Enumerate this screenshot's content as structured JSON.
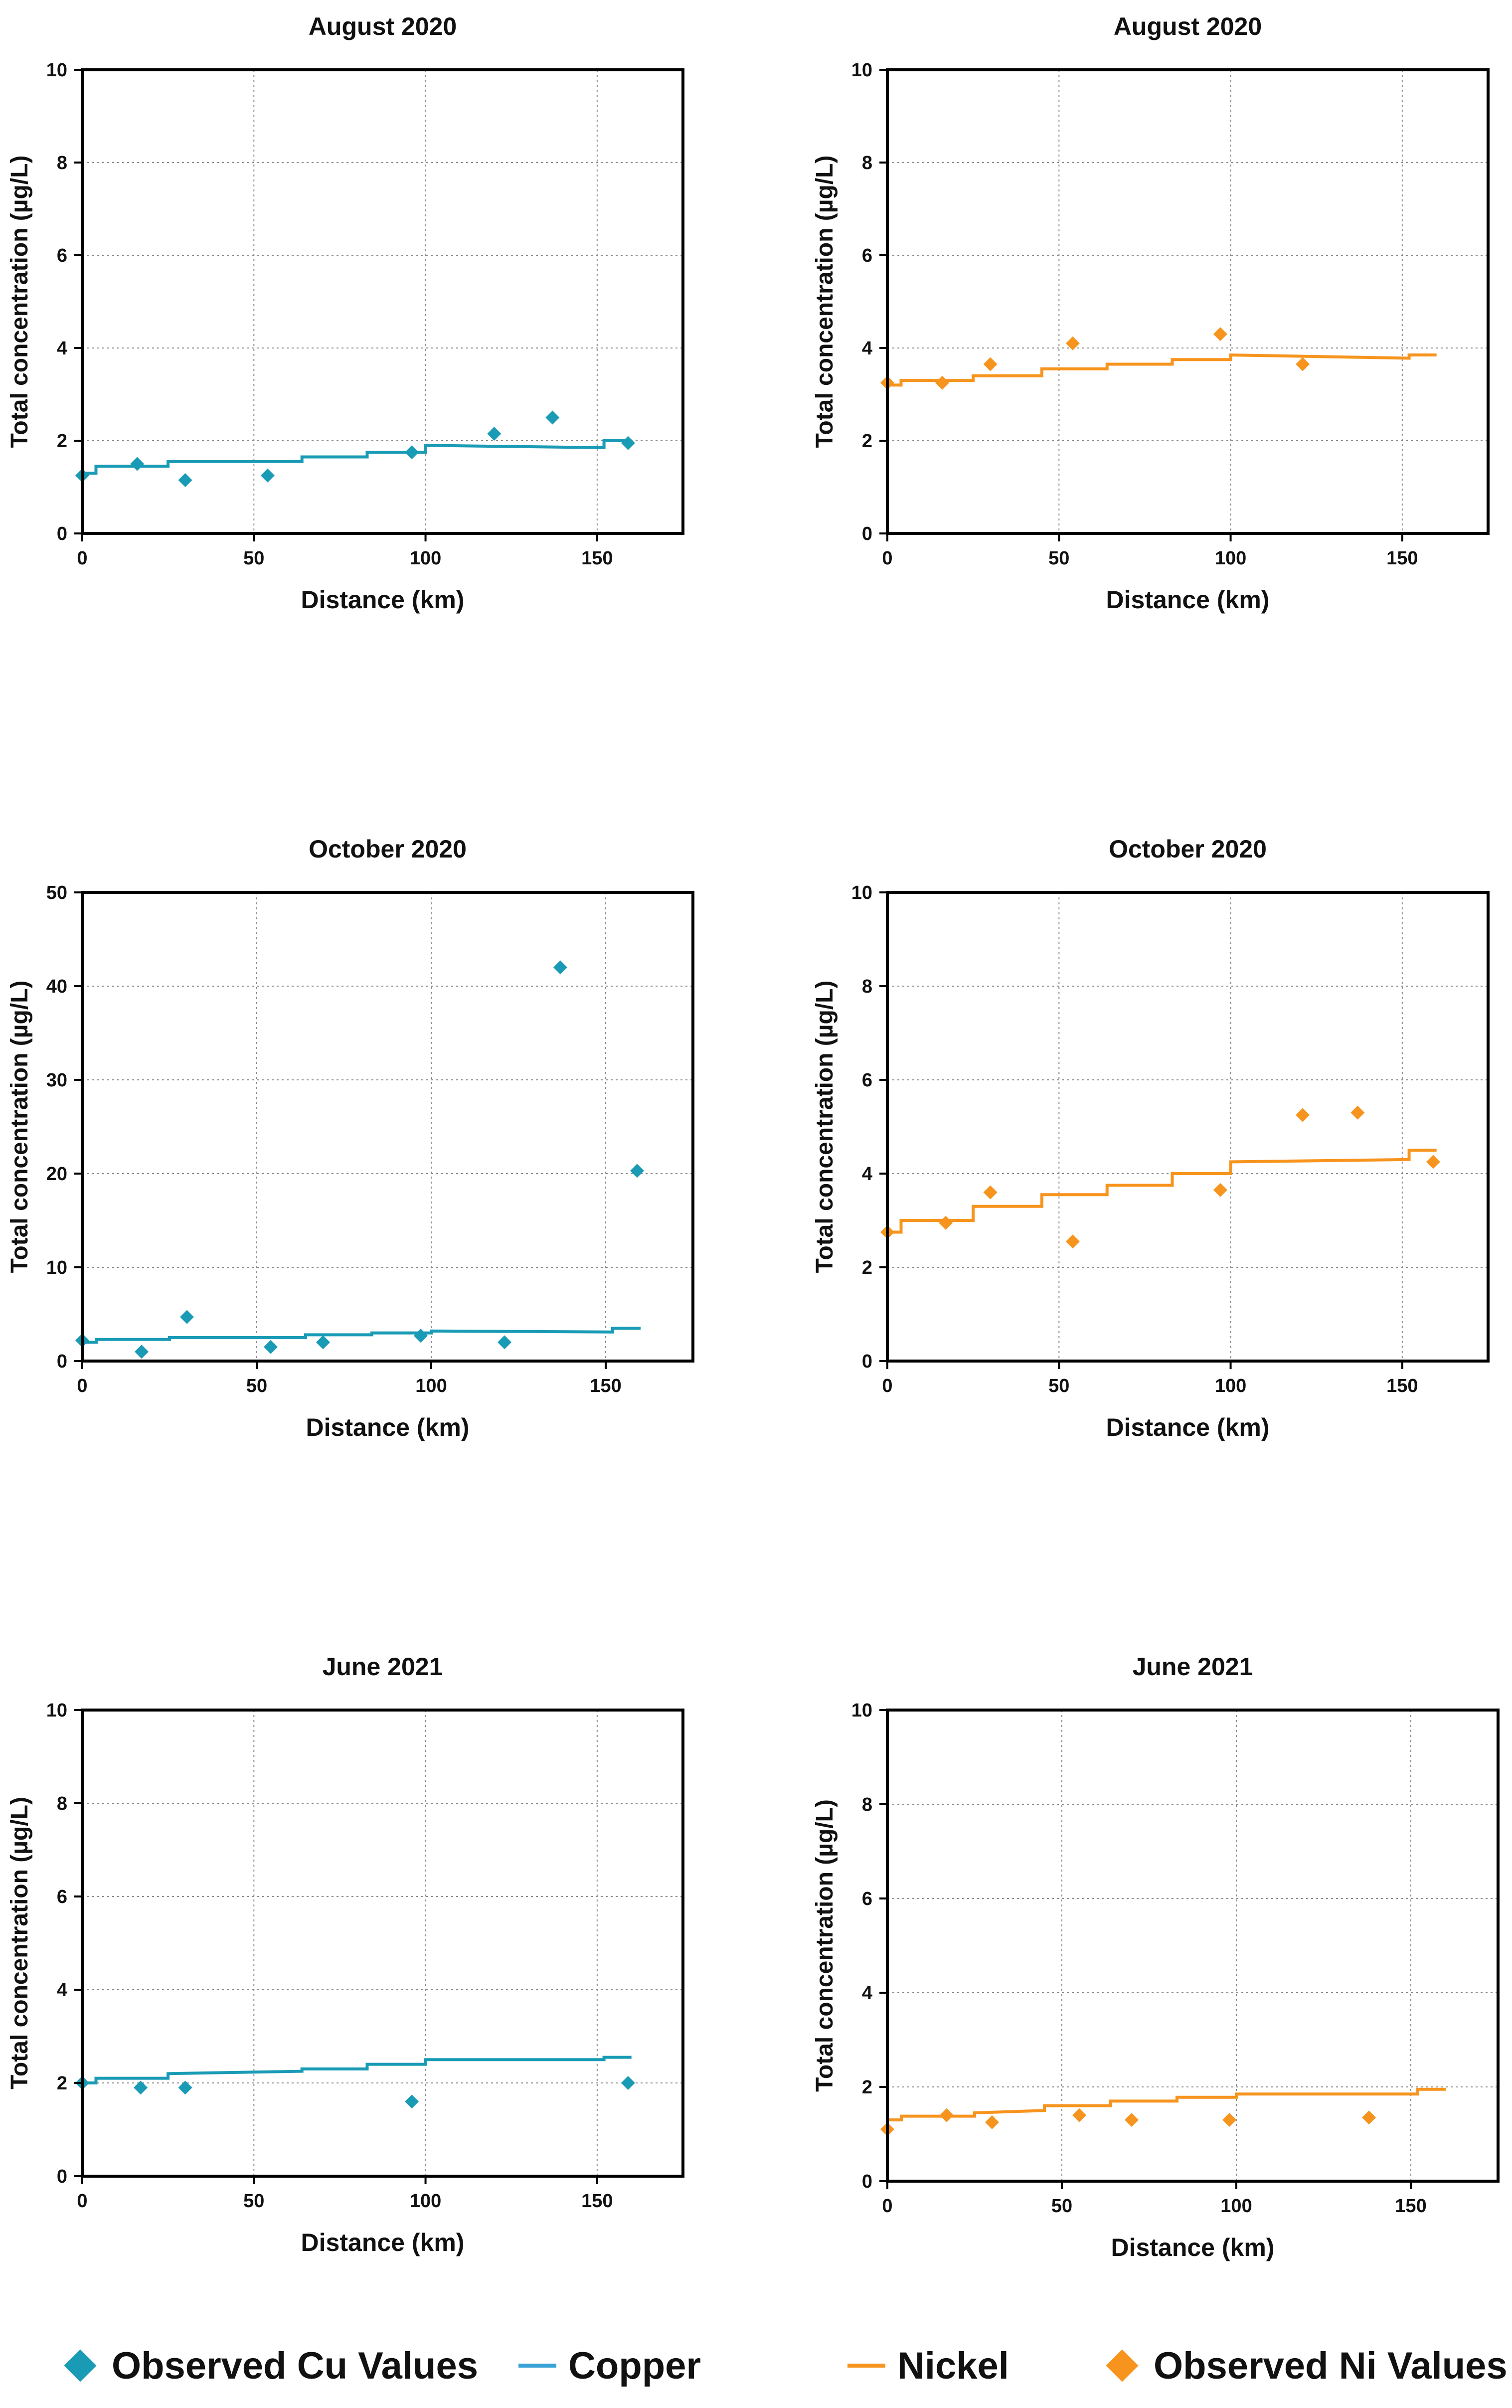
{
  "colors": {
    "copper": "#1a9bb5",
    "copper_line": "#3aa3d6",
    "nickel": "#f7941d"
  },
  "legend": {
    "observed_cu": "Observed Cu Values",
    "copper": "Copper",
    "nickel": "Nickel",
    "observed_ni": "Observed Ni Values"
  },
  "chart_data": [
    {
      "type": "line",
      "metal": "copper",
      "title": "August 2020",
      "xlabel": "Distance (km)",
      "ylabel": "Total concentration (µg/L)",
      "xlim": [
        0,
        175
      ],
      "ylim": [
        0,
        10
      ],
      "xticks": [
        0,
        50,
        100,
        150
      ],
      "yticks": [
        0,
        2,
        4,
        6,
        8,
        10
      ],
      "grid": true,
      "series": [
        {
          "name": "Copper",
          "kind": "step",
          "x": [
            0,
            4,
            4,
            25,
            25,
            64,
            64,
            83,
            83,
            100,
            100,
            152,
            152,
            160
          ],
          "y": [
            1.3,
            1.3,
            1.45,
            1.45,
            1.55,
            1.55,
            1.65,
            1.65,
            1.75,
            1.75,
            1.9,
            1.85,
            2.0,
            2.0
          ]
        },
        {
          "name": "Observed Cu Values",
          "kind": "scatter",
          "x": [
            0,
            16,
            30,
            54,
            96,
            120,
            137,
            159
          ],
          "y": [
            1.25,
            1.5,
            1.15,
            1.25,
            1.75,
            2.15,
            2.5,
            1.95
          ]
        }
      ]
    },
    {
      "type": "line",
      "metal": "nickel",
      "title": "August 2020",
      "xlabel": "Distance (km)",
      "ylabel": "Total concentration (µg/L)",
      "xlim": [
        0,
        175
      ],
      "ylim": [
        0,
        10
      ],
      "xticks": [
        0,
        50,
        100,
        150
      ],
      "yticks": [
        0,
        2,
        4,
        6,
        8,
        10
      ],
      "grid": true,
      "series": [
        {
          "name": "Nickel",
          "kind": "step",
          "x": [
            0,
            4,
            4,
            25,
            25,
            45,
            45,
            64,
            64,
            83,
            83,
            100,
            100,
            152,
            152,
            160
          ],
          "y": [
            3.2,
            3.2,
            3.3,
            3.3,
            3.4,
            3.4,
            3.55,
            3.55,
            3.65,
            3.65,
            3.75,
            3.75,
            3.85,
            3.78,
            3.85,
            3.85
          ]
        },
        {
          "name": "Observed Ni Values",
          "kind": "scatter",
          "x": [
            0,
            16,
            30,
            54,
            97,
            121
          ],
          "y": [
            3.25,
            3.25,
            3.65,
            4.1,
            4.3,
            3.65
          ]
        }
      ]
    },
    {
      "type": "line",
      "metal": "copper",
      "title": "October 2020",
      "xlabel": "Distance (km)",
      "ylabel": "Total concentration (µg/L)",
      "xlim": [
        0,
        175
      ],
      "ylim": [
        0,
        50
      ],
      "xticks": [
        0,
        50,
        100,
        150
      ],
      "yticks": [
        0,
        10,
        20,
        30,
        40,
        50
      ],
      "grid": true,
      "series": [
        {
          "name": "Copper",
          "kind": "step",
          "x": [
            0,
            4,
            4,
            25,
            25,
            64,
            64,
            83,
            83,
            100,
            100,
            152,
            152,
            160
          ],
          "y": [
            2.0,
            2.0,
            2.3,
            2.3,
            2.5,
            2.5,
            2.8,
            2.8,
            3.0,
            3.0,
            3.2,
            3.1,
            3.5,
            3.5
          ]
        },
        {
          "name": "Observed Cu Values",
          "kind": "scatter",
          "x": [
            0,
            17,
            30,
            54,
            69,
            97,
            121,
            137,
            159
          ],
          "y": [
            2.2,
            1.0,
            4.7,
            1.5,
            2.0,
            2.7,
            2.0,
            42.0,
            20.3
          ]
        }
      ]
    },
    {
      "type": "line",
      "metal": "nickel",
      "title": "October 2020",
      "xlabel": "Distance (km)",
      "ylabel": "Total concentration (µg/L)",
      "xlim": [
        0,
        175
      ],
      "ylim": [
        0,
        10
      ],
      "xticks": [
        0,
        50,
        100,
        150
      ],
      "yticks": [
        0,
        2,
        4,
        6,
        8,
        10
      ],
      "grid": true,
      "series": [
        {
          "name": "Nickel",
          "kind": "step",
          "x": [
            0,
            4,
            4,
            25,
            25,
            45,
            45,
            64,
            64,
            83,
            83,
            100,
            100,
            152,
            152,
            160
          ],
          "y": [
            2.75,
            2.75,
            3.0,
            3.0,
            3.3,
            3.3,
            3.55,
            3.55,
            3.75,
            3.75,
            4.0,
            4.0,
            4.25,
            4.3,
            4.5,
            4.5
          ]
        },
        {
          "name": "Observed Ni Values",
          "kind": "scatter",
          "x": [
            0,
            17,
            30,
            54,
            97,
            121,
            137,
            159
          ],
          "y": [
            2.75,
            2.95,
            3.6,
            2.55,
            3.65,
            5.25,
            5.3,
            4.25
          ]
        }
      ]
    },
    {
      "type": "line",
      "metal": "copper",
      "title": "June 2021",
      "xlabel": "Distance (km)",
      "ylabel": "Total concentration (µg/L)",
      "xlim": [
        0,
        175
      ],
      "ylim": [
        0,
        10
      ],
      "xticks": [
        0,
        50,
        100,
        150
      ],
      "yticks": [
        0,
        2,
        4,
        6,
        8,
        10
      ],
      "grid": true,
      "series": [
        {
          "name": "Copper",
          "kind": "step",
          "x": [
            0,
            4,
            4,
            25,
            25,
            64,
            64,
            83,
            83,
            100,
            100,
            152,
            152,
            160
          ],
          "y": [
            2.0,
            2.0,
            2.1,
            2.1,
            2.2,
            2.25,
            2.3,
            2.3,
            2.4,
            2.4,
            2.5,
            2.5,
            2.55,
            2.55
          ]
        },
        {
          "name": "Observed Cu Values",
          "kind": "scatter",
          "x": [
            0,
            17,
            30,
            96,
            159
          ],
          "y": [
            2.0,
            1.9,
            1.9,
            1.6,
            2.0
          ]
        }
      ]
    },
    {
      "type": "line",
      "metal": "nickel",
      "title": "June 2021",
      "xlabel": "Distance (km)",
      "ylabel": "Total concentration (µg/L)",
      "xlim": [
        0,
        175
      ],
      "ylim": [
        0,
        10
      ],
      "xticks": [
        0,
        50,
        100,
        150
      ],
      "yticks": [
        0,
        2,
        4,
        6,
        8,
        10
      ],
      "grid": true,
      "series": [
        {
          "name": "Nickel",
          "kind": "step",
          "x": [
            0,
            4,
            4,
            25,
            25,
            45,
            45,
            64,
            64,
            83,
            83,
            100,
            100,
            152,
            152,
            160
          ],
          "y": [
            1.3,
            1.3,
            1.38,
            1.38,
            1.45,
            1.5,
            1.6,
            1.6,
            1.7,
            1.7,
            1.78,
            1.78,
            1.85,
            1.85,
            1.95,
            1.95
          ]
        },
        {
          "name": "Observed Ni Values",
          "kind": "scatter",
          "x": [
            0,
            17,
            30,
            55,
            70,
            98,
            138
          ],
          "y": [
            1.1,
            1.4,
            1.25,
            1.4,
            1.3,
            1.3,
            1.35
          ]
        }
      ]
    }
  ]
}
